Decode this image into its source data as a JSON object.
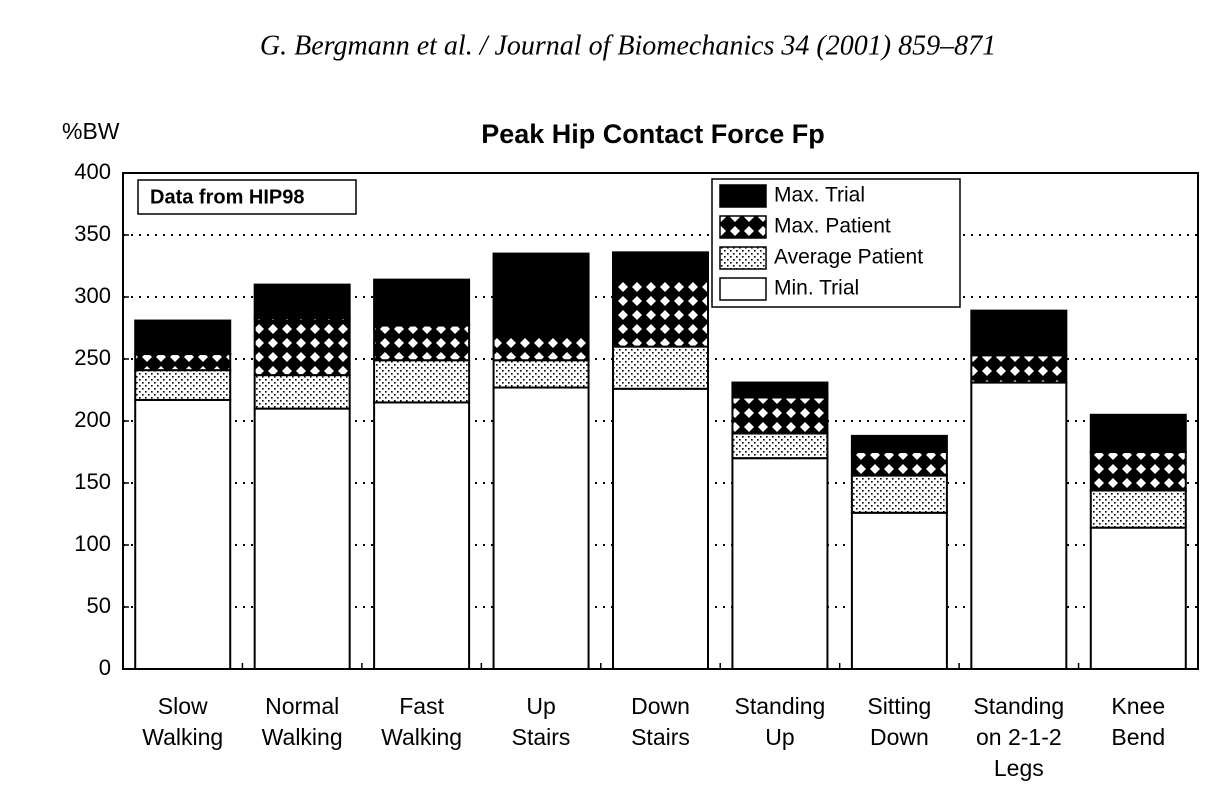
{
  "header": "G. Bergmann et al. / Journal of Biomechanics 34 (2001) 859–871",
  "chart_data": {
    "type": "stacked-bar",
    "title": "Peak Hip Contact Force  Fp",
    "ylabel": "%BW",
    "annotation": "Data from HIP98",
    "categories": [
      "Slow\nWalking",
      "Normal\nWalking",
      "Fast\nWalking",
      "Up\nStairs",
      "Down\nStairs",
      "Standing\nUp",
      "Sitting\nDown",
      "Standing\non 2-1-2\nLegs",
      "Knee\nBend"
    ],
    "series": [
      {
        "name": "Min. Trial",
        "color": "#ffffff",
        "pattern": "none",
        "values": [
          217,
          210,
          215,
          227,
          226,
          170,
          126,
          231,
          114
        ]
      },
      {
        "name": "Average Patient",
        "color": "#ffffff",
        "pattern": "dots",
        "values": [
          24,
          27,
          34,
          22,
          34,
          20,
          30,
          null,
          30
        ]
      },
      {
        "name": "Max. Patient",
        "color": "#000000",
        "pattern": "checker",
        "values": [
          13,
          46,
          28,
          21,
          55,
          29,
          19,
          22,
          31
        ]
      },
      {
        "name": "Max. Trial",
        "color": "#000000",
        "pattern": "solid",
        "values": [
          27,
          27,
          37,
          65,
          21,
          12,
          13,
          36,
          30
        ]
      }
    ],
    "ylim": [
      0,
      400
    ],
    "yticks": [
      0,
      50,
      100,
      150,
      200,
      250,
      300,
      350,
      400
    ],
    "grid": true,
    "legend": "top-right"
  }
}
